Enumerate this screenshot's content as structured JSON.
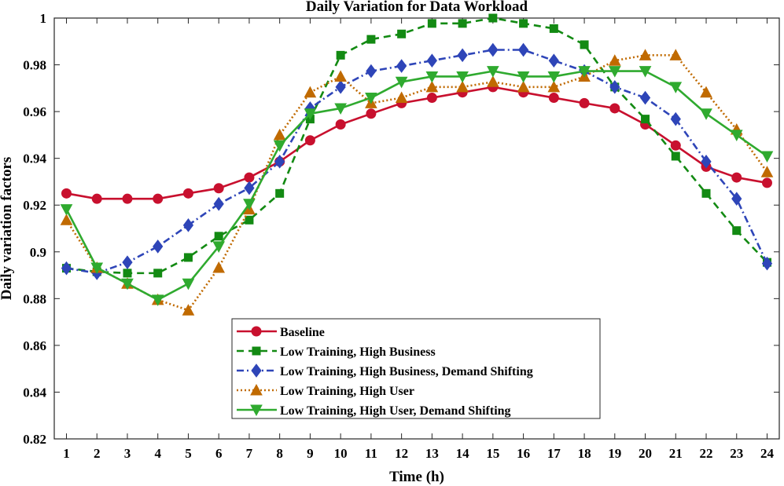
{
  "chart_data": {
    "type": "line",
    "title": "Daily Variation for Data Workload",
    "xlabel": "Time (h)",
    "ylabel": "Daily variation factors",
    "xlim": [
      0.6,
      24.4
    ],
    "ylim": [
      0.82,
      1.0
    ],
    "x": [
      1,
      2,
      3,
      4,
      5,
      6,
      7,
      8,
      9,
      10,
      11,
      12,
      13,
      14,
      15,
      16,
      17,
      18,
      19,
      20,
      21,
      22,
      23,
      24
    ],
    "xticks": [
      "1",
      "2",
      "3",
      "4",
      "5",
      "6",
      "7",
      "8",
      "9",
      "10",
      "11",
      "12",
      "13",
      "14",
      "15",
      "16",
      "17",
      "18",
      "19",
      "20",
      "21",
      "22",
      "23",
      "24"
    ],
    "yticks": [
      0.82,
      0.84,
      0.86,
      0.88,
      0.9,
      0.92,
      0.94,
      0.96,
      0.98,
      1.0
    ],
    "ytick_labels": [
      "0.82",
      "0.84",
      "0.86",
      "0.88",
      "0.9",
      "0.92",
      "0.94",
      "0.96",
      "0.98",
      "1"
    ],
    "legend_position": "bottom-center",
    "series": [
      {
        "name": "Baseline",
        "color": "#c8102e",
        "line_style": "solid",
        "marker": "circle",
        "values": [
          0.925,
          0.9227,
          0.9227,
          0.9227,
          0.925,
          0.9272,
          0.9318,
          0.9386,
          0.9477,
          0.9545,
          0.9591,
          0.9636,
          0.9659,
          0.9682,
          0.9705,
          0.9682,
          0.9659,
          0.9636,
          0.9614,
          0.9545,
          0.9455,
          0.9364,
          0.9318,
          0.9295
        ]
      },
      {
        "name": "Low Training, High Business",
        "color": "#138a13",
        "line_style": "dashed",
        "marker": "square",
        "values": [
          0.893,
          0.8915,
          0.8909,
          0.8909,
          0.8976,
          0.9067,
          0.9136,
          0.925,
          0.9568,
          0.9841,
          0.9909,
          0.9932,
          0.9977,
          0.9977,
          1.0,
          0.9977,
          0.9955,
          0.9886,
          0.9705,
          0.9568,
          0.9409,
          0.925,
          0.9091,
          0.8955
        ]
      },
      {
        "name": "Low Training, High Business, Demand Shifting",
        "color": "#2e45b8",
        "line_style": "dashdot",
        "marker": "diamond",
        "values": [
          0.893,
          0.8909,
          0.8955,
          0.9023,
          0.9114,
          0.9205,
          0.9273,
          0.9386,
          0.9614,
          0.9705,
          0.9773,
          0.9795,
          0.9818,
          0.9841,
          0.9864,
          0.9864,
          0.9818,
          0.9773,
          0.9705,
          0.9659,
          0.9568,
          0.9386,
          0.9227,
          0.895
        ]
      },
      {
        "name": "Low Training, High User",
        "color": "#c06a00",
        "line_style": "dotted",
        "marker": "triangle-up",
        "values": [
          0.9136,
          0.8932,
          0.8864,
          0.8795,
          0.875,
          0.8932,
          0.9182,
          0.95,
          0.9682,
          0.975,
          0.9636,
          0.9659,
          0.9705,
          0.9705,
          0.9727,
          0.9705,
          0.9705,
          0.975,
          0.9818,
          0.9841,
          0.9841,
          0.9682,
          0.9523,
          0.9341
        ]
      },
      {
        "name": "Low Training, High User, Demand Shifting",
        "color": "#2faa2f",
        "line_style": "solid",
        "marker": "triangle-down",
        "values": [
          0.9182,
          0.8932,
          0.8864,
          0.8795,
          0.8864,
          0.9023,
          0.9205,
          0.9455,
          0.9591,
          0.9614,
          0.9659,
          0.9727,
          0.975,
          0.975,
          0.9773,
          0.975,
          0.975,
          0.9773,
          0.9773,
          0.9773,
          0.9705,
          0.9591,
          0.95,
          0.9409
        ]
      }
    ]
  }
}
